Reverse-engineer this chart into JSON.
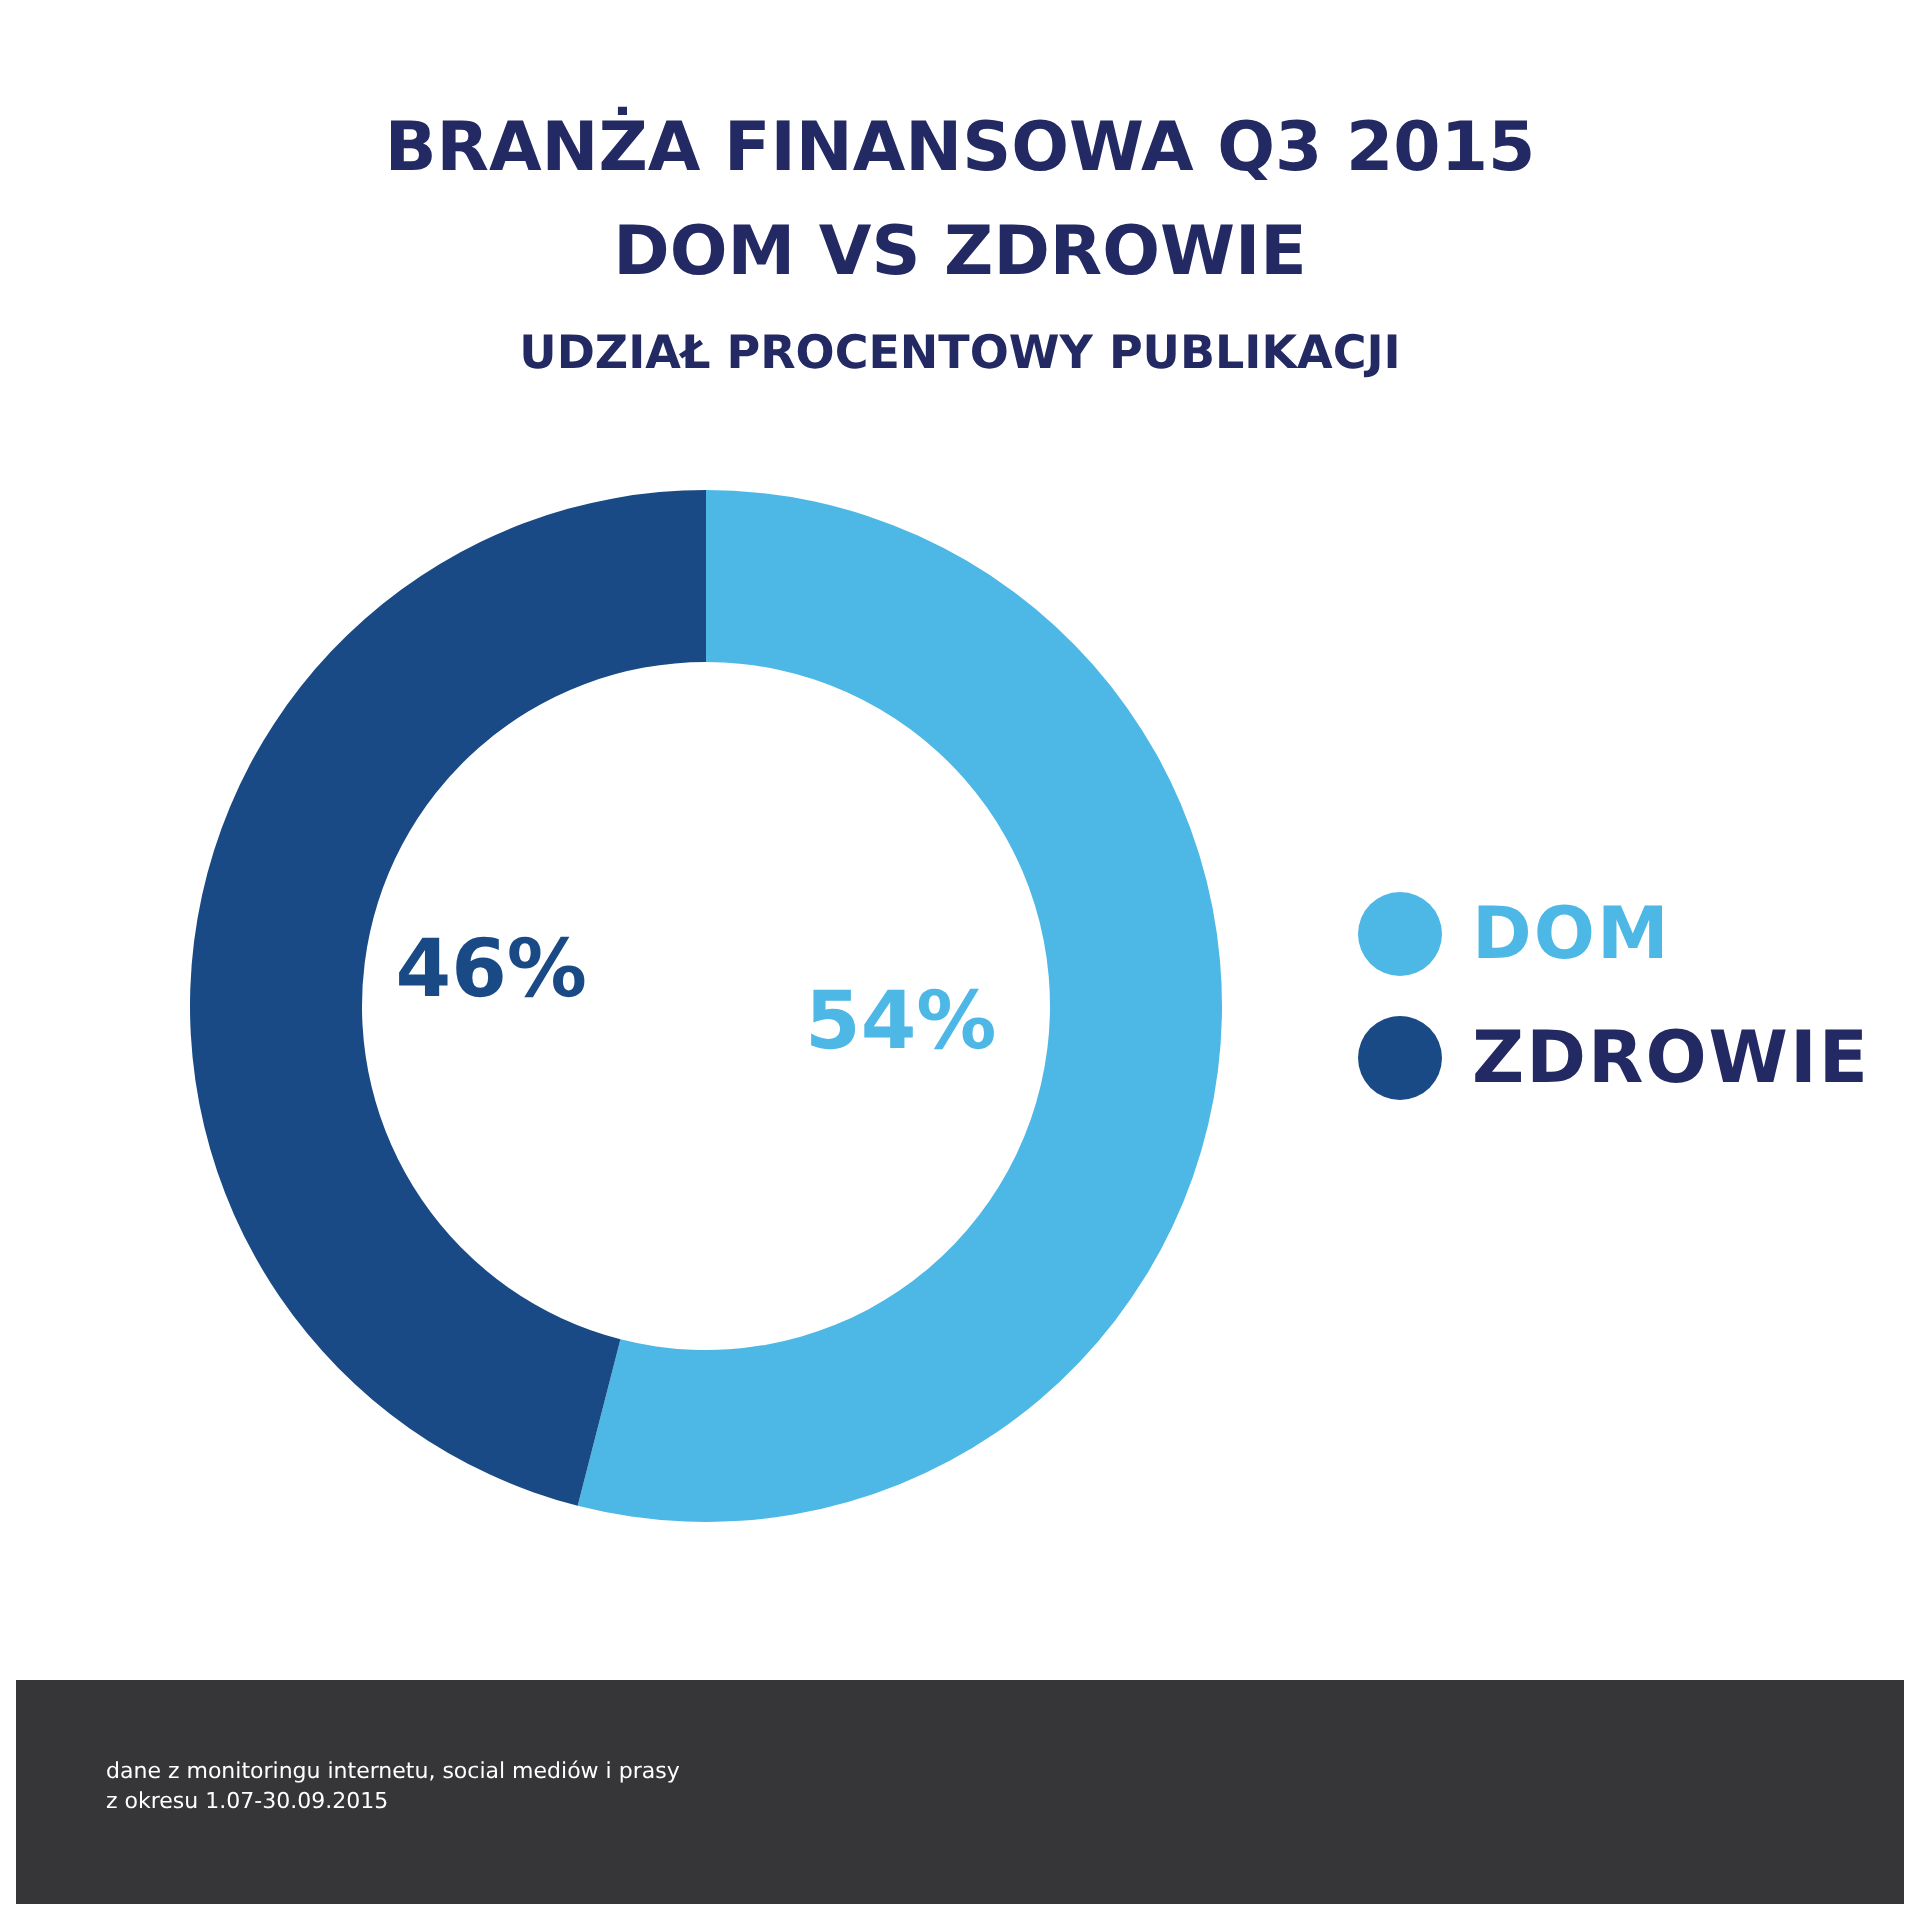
{
  "chart_data": {
    "type": "donut",
    "title": "BRANŻA FINANSOWA Q3 2015\nDOM VS ZDROWIE",
    "subtitle": "UDZIAŁ PROCENTOWY PUBLIKACJI",
    "categories": [
      "DOM",
      "ZDROWIE"
    ],
    "values": [
      54,
      46
    ],
    "colors": [
      "#4db8e6",
      "#1a4a85"
    ],
    "value_labels": [
      "54%",
      "46%"
    ],
    "legend": "right",
    "annotations": [
      "dane z monitoringu internetu, social mediów i prasy",
      "z okresu 1.07-30.09.2015"
    ]
  }
}
